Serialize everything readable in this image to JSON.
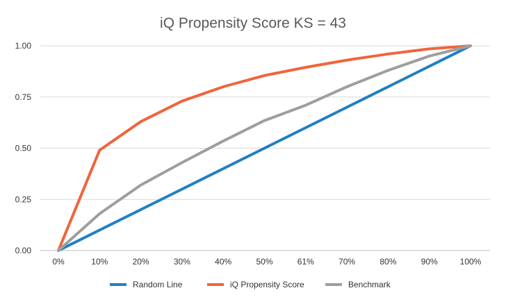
{
  "chart_data": {
    "type": "line",
    "title": "iQ Propensity Score KS = 43",
    "xlabel": "",
    "ylabel": "",
    "categories": [
      "0%",
      "10%",
      "20%",
      "30%",
      "40%",
      "50%",
      "61%",
      "70%",
      "80%",
      "90%",
      "100%"
    ],
    "ylim": [
      0,
      1
    ],
    "yticks": [
      "0.00",
      "0.25",
      "0.50",
      "0.75",
      "1.00"
    ],
    "ytick_values": [
      0,
      0.25,
      0.5,
      0.75,
      1.0
    ],
    "grid": true,
    "legend_position": "bottom",
    "series": [
      {
        "name": "Random Line",
        "color": "#1f7fc4",
        "values": [
          0,
          0.1,
          0.2,
          0.3,
          0.4,
          0.5,
          0.6,
          0.7,
          0.8,
          0.9,
          1.0
        ]
      },
      {
        "name": "iQ Propensity Score",
        "color": "#f0643c",
        "values": [
          0,
          0.49,
          0.63,
          0.73,
          0.8,
          0.855,
          0.895,
          0.93,
          0.96,
          0.985,
          1.0
        ]
      },
      {
        "name": "Benchmark",
        "color": "#9e9e9e",
        "values": [
          0,
          0.18,
          0.32,
          0.43,
          0.535,
          0.635,
          0.71,
          0.8,
          0.88,
          0.95,
          1.0
        ]
      }
    ]
  }
}
